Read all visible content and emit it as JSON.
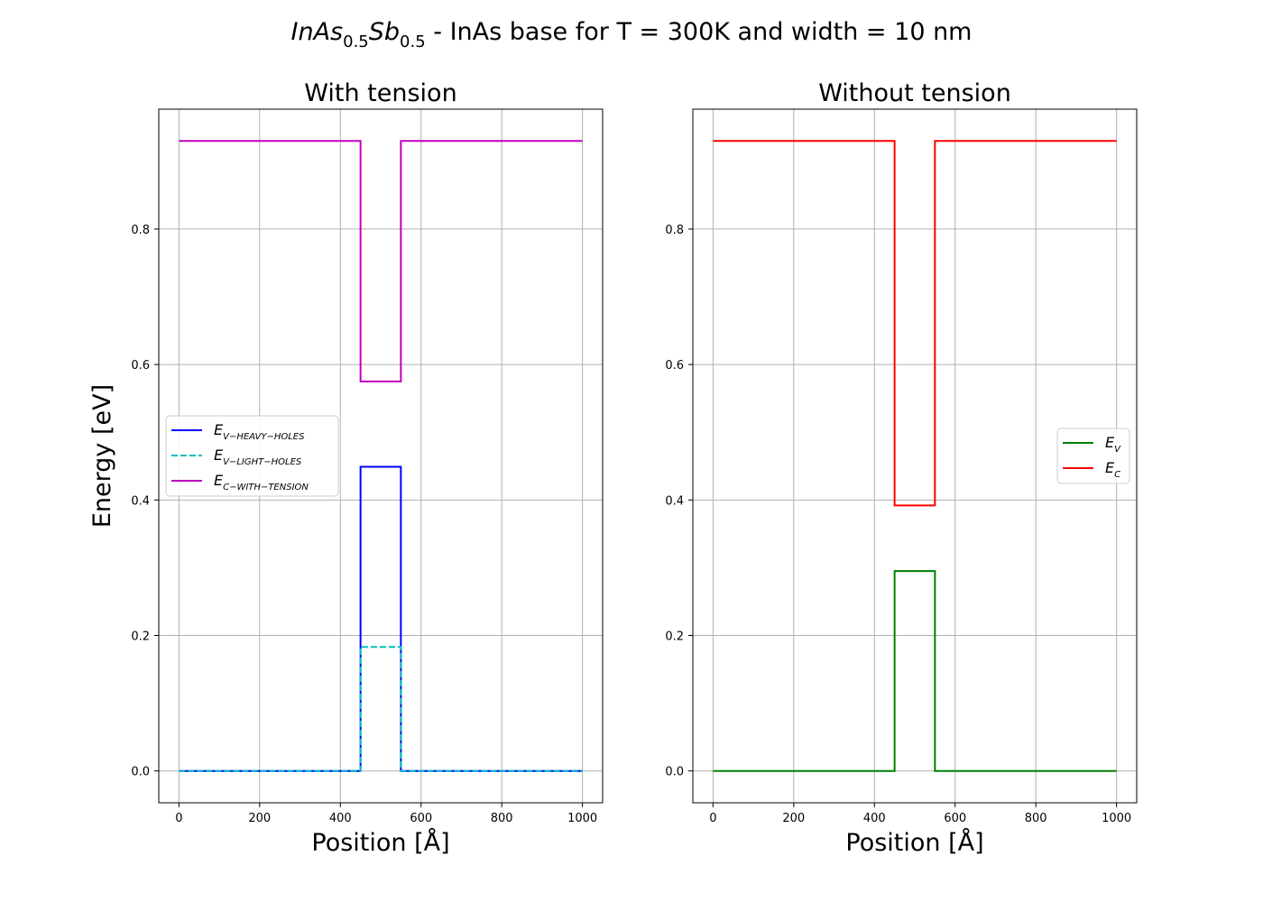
{
  "figure": {
    "title": {
      "formula_main": "InAs",
      "formula_sub1": "0.5",
      "formula_mid": "Sb",
      "formula_sub2": "0.5",
      "rest": " - InAs base for T = 300K and width = 10 nm"
    }
  },
  "chart_data": [
    {
      "type": "line",
      "title": "With tension",
      "xlabel": "Position [Å]",
      "ylabel": "Energy [eV]",
      "xlim": [
        -50,
        1050
      ],
      "ylim": [
        -0.047,
        0.977
      ],
      "xticks": [
        0,
        200,
        400,
        600,
        800,
        1000
      ],
      "yticks": [
        0.0,
        0.2,
        0.4,
        0.6,
        0.8
      ],
      "ytick_labels": [
        "0.0",
        "0.2",
        "0.4",
        "0.6",
        "0.8"
      ],
      "grid": true,
      "legend_position": "center-left",
      "series": [
        {
          "name": "E_{V-HEAVY-HOLES}",
          "label_main": "E",
          "label_sub": "V−HEAVY−HOLES",
          "color": "#0000ff",
          "dash": "solid",
          "x": [
            0,
            450,
            450,
            550,
            550,
            1000
          ],
          "y": [
            0.0,
            0.0,
            0.449,
            0.449,
            0.0,
            0.0
          ]
        },
        {
          "name": "E_{V-LIGHT-HOLES}",
          "label_main": "E",
          "label_sub": "V−LIGHT−HOLES",
          "color": "#00bfbf",
          "dash": "dashed",
          "x": [
            0,
            450,
            450,
            550,
            550,
            1000
          ],
          "y": [
            0.0,
            0.0,
            0.183,
            0.183,
            0.0,
            0.0
          ]
        },
        {
          "name": "E_{C-WITH-TENSION}",
          "label_main": "E",
          "label_sub": "C−WITH−TENSION",
          "color": "#bf00bf",
          "dash": "solid",
          "x": [
            0,
            450,
            450,
            550,
            550,
            1000
          ],
          "y": [
            0.93,
            0.93,
            0.575,
            0.575,
            0.93,
            0.93
          ]
        }
      ]
    },
    {
      "type": "line",
      "title": "Without tension",
      "xlabel": "Position [Å]",
      "ylabel": "",
      "xlim": [
        -50,
        1050
      ],
      "ylim": [
        -0.047,
        0.977
      ],
      "xticks": [
        0,
        200,
        400,
        600,
        800,
        1000
      ],
      "yticks": [
        0.0,
        0.2,
        0.4,
        0.6,
        0.8
      ],
      "ytick_labels": [
        "0.0",
        "0.2",
        "0.4",
        "0.6",
        "0.8"
      ],
      "grid": true,
      "legend_position": "center-right",
      "series": [
        {
          "name": "E_V",
          "label_main": "E",
          "label_sub": "V",
          "color": "#008000",
          "dash": "solid",
          "x": [
            0,
            450,
            450,
            550,
            550,
            1000
          ],
          "y": [
            0.0,
            0.0,
            0.295,
            0.295,
            0.0,
            0.0
          ]
        },
        {
          "name": "E_C",
          "label_main": "E",
          "label_sub": "C",
          "color": "#ff0000",
          "dash": "solid",
          "x": [
            0,
            450,
            450,
            550,
            550,
            1000
          ],
          "y": [
            0.93,
            0.93,
            0.392,
            0.392,
            0.93,
            0.93
          ]
        }
      ]
    }
  ]
}
